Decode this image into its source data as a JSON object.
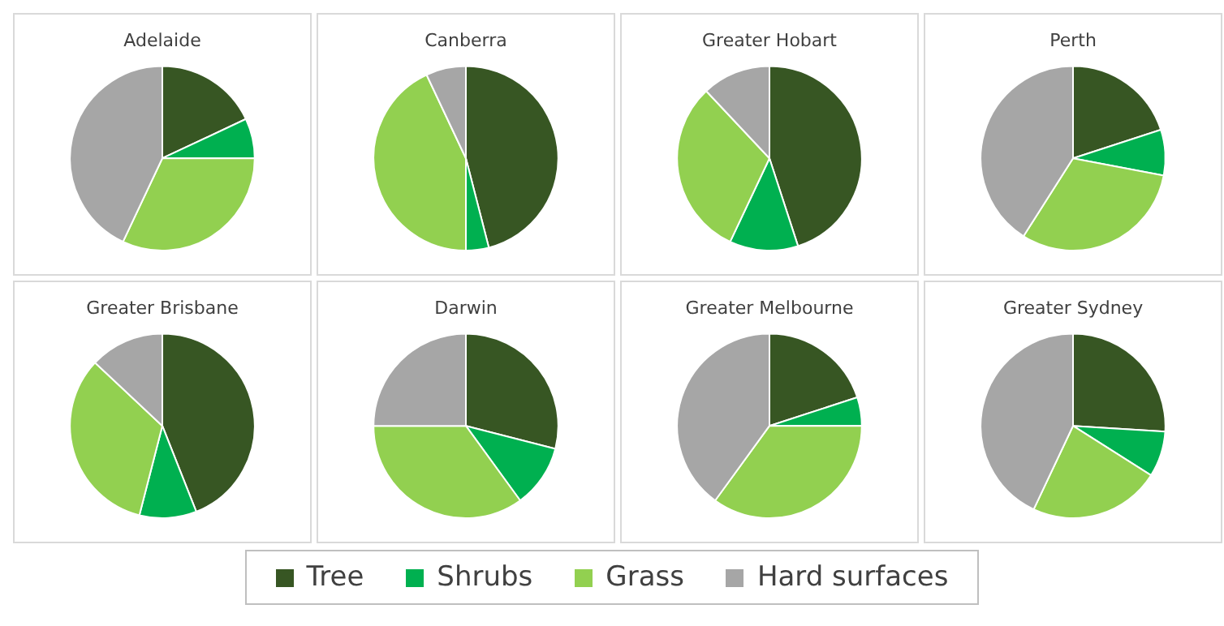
{
  "chart_data": [
    {
      "type": "pie",
      "title": "Adelaide",
      "categories": [
        "Tree",
        "Shrubs",
        "Grass",
        "Hard surfaces"
      ],
      "values": [
        18,
        7,
        32,
        43
      ],
      "colors": [
        "#375623",
        "#00b050",
        "#92d050",
        "#a6a6a6"
      ],
      "legend": "bottom"
    },
    {
      "type": "pie",
      "title": "Canberra",
      "categories": [
        null,
        null,
        null,
        null
      ],
      "values": [
        46,
        4,
        43,
        7
      ],
      "colors": [
        "#375623",
        "#00b050",
        "#92d050",
        "#a6a6a6"
      ]
    },
    {
      "type": "pie",
      "title": "Greater Hobart",
      "categories": [
        null,
        null,
        null,
        null
      ],
      "values": [
        45,
        12,
        31,
        12
      ],
      "colors": [
        "#375623",
        "#00b050",
        "#92d050",
        "#a6a6a6"
      ]
    },
    {
      "type": "pie",
      "title": "Perth",
      "categories": [
        null,
        null,
        null,
        null
      ],
      "values": [
        20,
        8,
        31,
        41
      ],
      "colors": [
        "#375623",
        "#00b050",
        "#92d050",
        "#a6a6a6"
      ]
    },
    {
      "type": "pie",
      "title": "Greater Brisbane",
      "categories": [
        null,
        null,
        null,
        null
      ],
      "values": [
        44,
        10,
        33,
        13
      ],
      "colors": [
        "#375623",
        "#00b050",
        "#92d050",
        "#a6a6a6"
      ]
    },
    {
      "type": "pie",
      "title": "Darwin",
      "categories": [
        null,
        null,
        null,
        null
      ],
      "values": [
        29,
        11,
        35,
        25
      ],
      "colors": [
        "#375623",
        "#00b050",
        "#92d050",
        "#a6a6a6"
      ]
    },
    {
      "type": "pie",
      "title": "Greater Melbourne",
      "categories": [
        null,
        null,
        null,
        null
      ],
      "values": [
        20,
        5,
        35,
        40
      ],
      "colors": [
        "#375623",
        "#00b050",
        "#92d050",
        "#a6a6a6"
      ]
    },
    {
      "type": "pie",
      "title": "Greater Sydney",
      "categories": [
        null,
        null,
        null,
        null
      ],
      "values": [
        26,
        8,
        23,
        43
      ],
      "colors": [
        "#375623",
        "#00b050",
        "#92d050",
        "#a6a6a6"
      ]
    }
  ]
}
